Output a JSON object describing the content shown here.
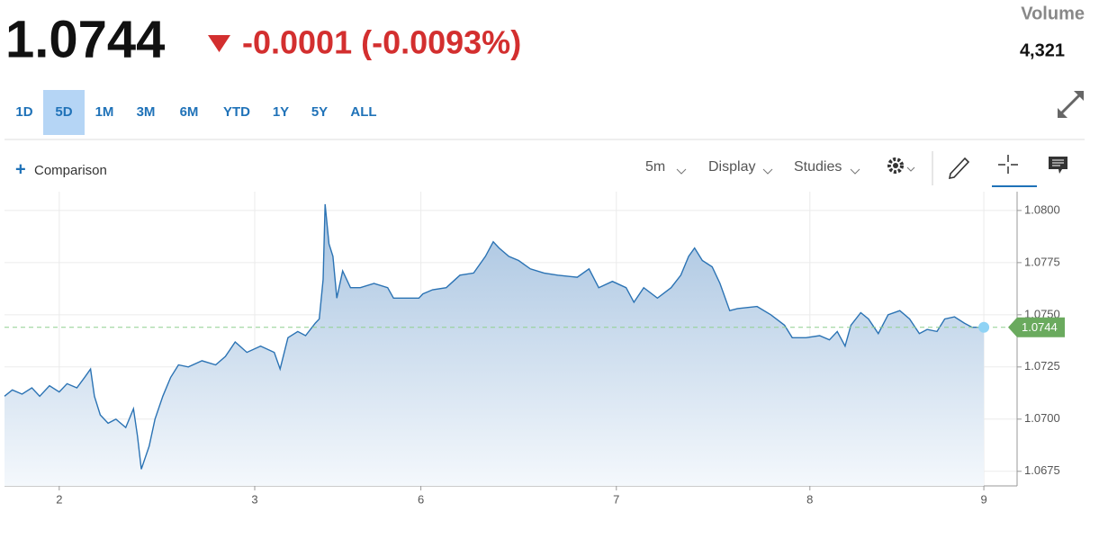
{
  "header": {
    "price": "1.0744",
    "change": "-0.0001 (-0.0093%)",
    "volume_label": "Volume",
    "volume": "4,321"
  },
  "ranges": [
    "1D",
    "5D",
    "1M",
    "3M",
    "6M",
    "YTD",
    "1Y",
    "5Y",
    "ALL"
  ],
  "selected_range": "5D",
  "toolbar": {
    "comparison": "Comparison",
    "interval": "5m",
    "display": "Display",
    "studies": "Studies"
  },
  "chart_data": {
    "type": "area",
    "color": "#2b73b4",
    "x": [
      -0.28,
      -0.24,
      -0.19,
      -0.14,
      -0.1,
      -0.05,
      0.0,
      0.04,
      0.09,
      0.13,
      0.16,
      0.18,
      0.21,
      0.25,
      0.29,
      0.34,
      0.38,
      0.4,
      0.42,
      0.46,
      0.49,
      0.53,
      0.57,
      0.61,
      0.66,
      0.73,
      0.8,
      0.85,
      0.9,
      0.96,
      1.03,
      1.1,
      1.13,
      1.17,
      1.22,
      1.26,
      1.31,
      1.33,
      1.35,
      1.36,
      1.38,
      1.4,
      1.42,
      1.45,
      1.49,
      1.54,
      1.61,
      1.68,
      1.71,
      1.77,
      1.84,
      1.86,
      1.91,
      1.98,
      2.05,
      2.12,
      2.18,
      2.22,
      2.25,
      2.3,
      2.35,
      2.41,
      2.48,
      2.55,
      2.65,
      2.71,
      2.76,
      2.83,
      2.9,
      2.94,
      2.99,
      3.06,
      3.13,
      3.18,
      3.22,
      3.25,
      3.29,
      3.34,
      3.38,
      3.43,
      3.47,
      3.57,
      3.64,
      3.71,
      3.75,
      3.82,
      3.89,
      3.94,
      3.98,
      4.02,
      4.05,
      4.1,
      4.14,
      4.19,
      4.24,
      4.3,
      4.35,
      4.4,
      4.44,
      4.49,
      4.53,
      4.58,
      4.63,
      4.67,
      4.73
    ],
    "values": [
      1.0711,
      1.0714,
      1.0712,
      1.0715,
      1.0711,
      1.0716,
      1.0713,
      1.0717,
      1.0715,
      1.072,
      1.0724,
      1.0711,
      1.0702,
      1.0698,
      1.07,
      1.0696,
      1.0705,
      1.0692,
      1.0676,
      1.0687,
      1.07,
      1.0711,
      1.072,
      1.0726,
      1.0725,
      1.0728,
      1.0726,
      1.073,
      1.0737,
      1.0732,
      1.0735,
      1.0732,
      1.0724,
      1.0739,
      1.0742,
      1.074,
      1.0746,
      1.0748,
      1.0767,
      1.0803,
      1.0784,
      1.0778,
      1.0758,
      1.0771,
      1.0763,
      1.0763,
      1.0765,
      1.0763,
      1.0758,
      1.0758,
      1.0758,
      1.076,
      1.0762,
      1.0763,
      1.0769,
      1.077,
      1.0778,
      1.0785,
      1.0782,
      1.0778,
      1.0776,
      1.0772,
      1.077,
      1.0769,
      1.0768,
      1.0772,
      1.0763,
      1.0766,
      1.0763,
      1.0756,
      1.0763,
      1.0758,
      1.0763,
      1.0769,
      1.0778,
      1.0782,
      1.0776,
      1.0773,
      1.0765,
      1.0752,
      1.0753,
      1.0754,
      1.075,
      1.0745,
      1.0739,
      1.0739,
      1.074,
      1.0738,
      1.0742,
      1.0735,
      1.0745,
      1.0751,
      1.0748,
      1.0741,
      1.075,
      1.0752,
      1.0748,
      1.0741,
      1.0743,
      1.0742,
      1.0748,
      1.0749,
      1.0746,
      1.0744,
      1.0744
    ],
    "xlim": [
      -0.28,
      4.9
    ],
    "xticks": [
      {
        "value": 0,
        "label": "2"
      },
      {
        "value": 1.0,
        "label": "3"
      },
      {
        "value": 1.85,
        "label": "6"
      },
      {
        "value": 2.85,
        "label": "7"
      },
      {
        "value": 3.84,
        "label": "8"
      },
      {
        "value": 4.73,
        "label": "9"
      }
    ],
    "ylim": [
      1.0668,
      1.0809
    ],
    "yticks": [
      1.0675,
      {
        "value": 1.07,
        "label": "1.0700"
      },
      1.0725,
      {
        "value": 1.075,
        "label": "1.0750"
      },
      1.0775,
      {
        "value": 1.08,
        "label": "1.0800"
      }
    ],
    "grid": true
  }
}
